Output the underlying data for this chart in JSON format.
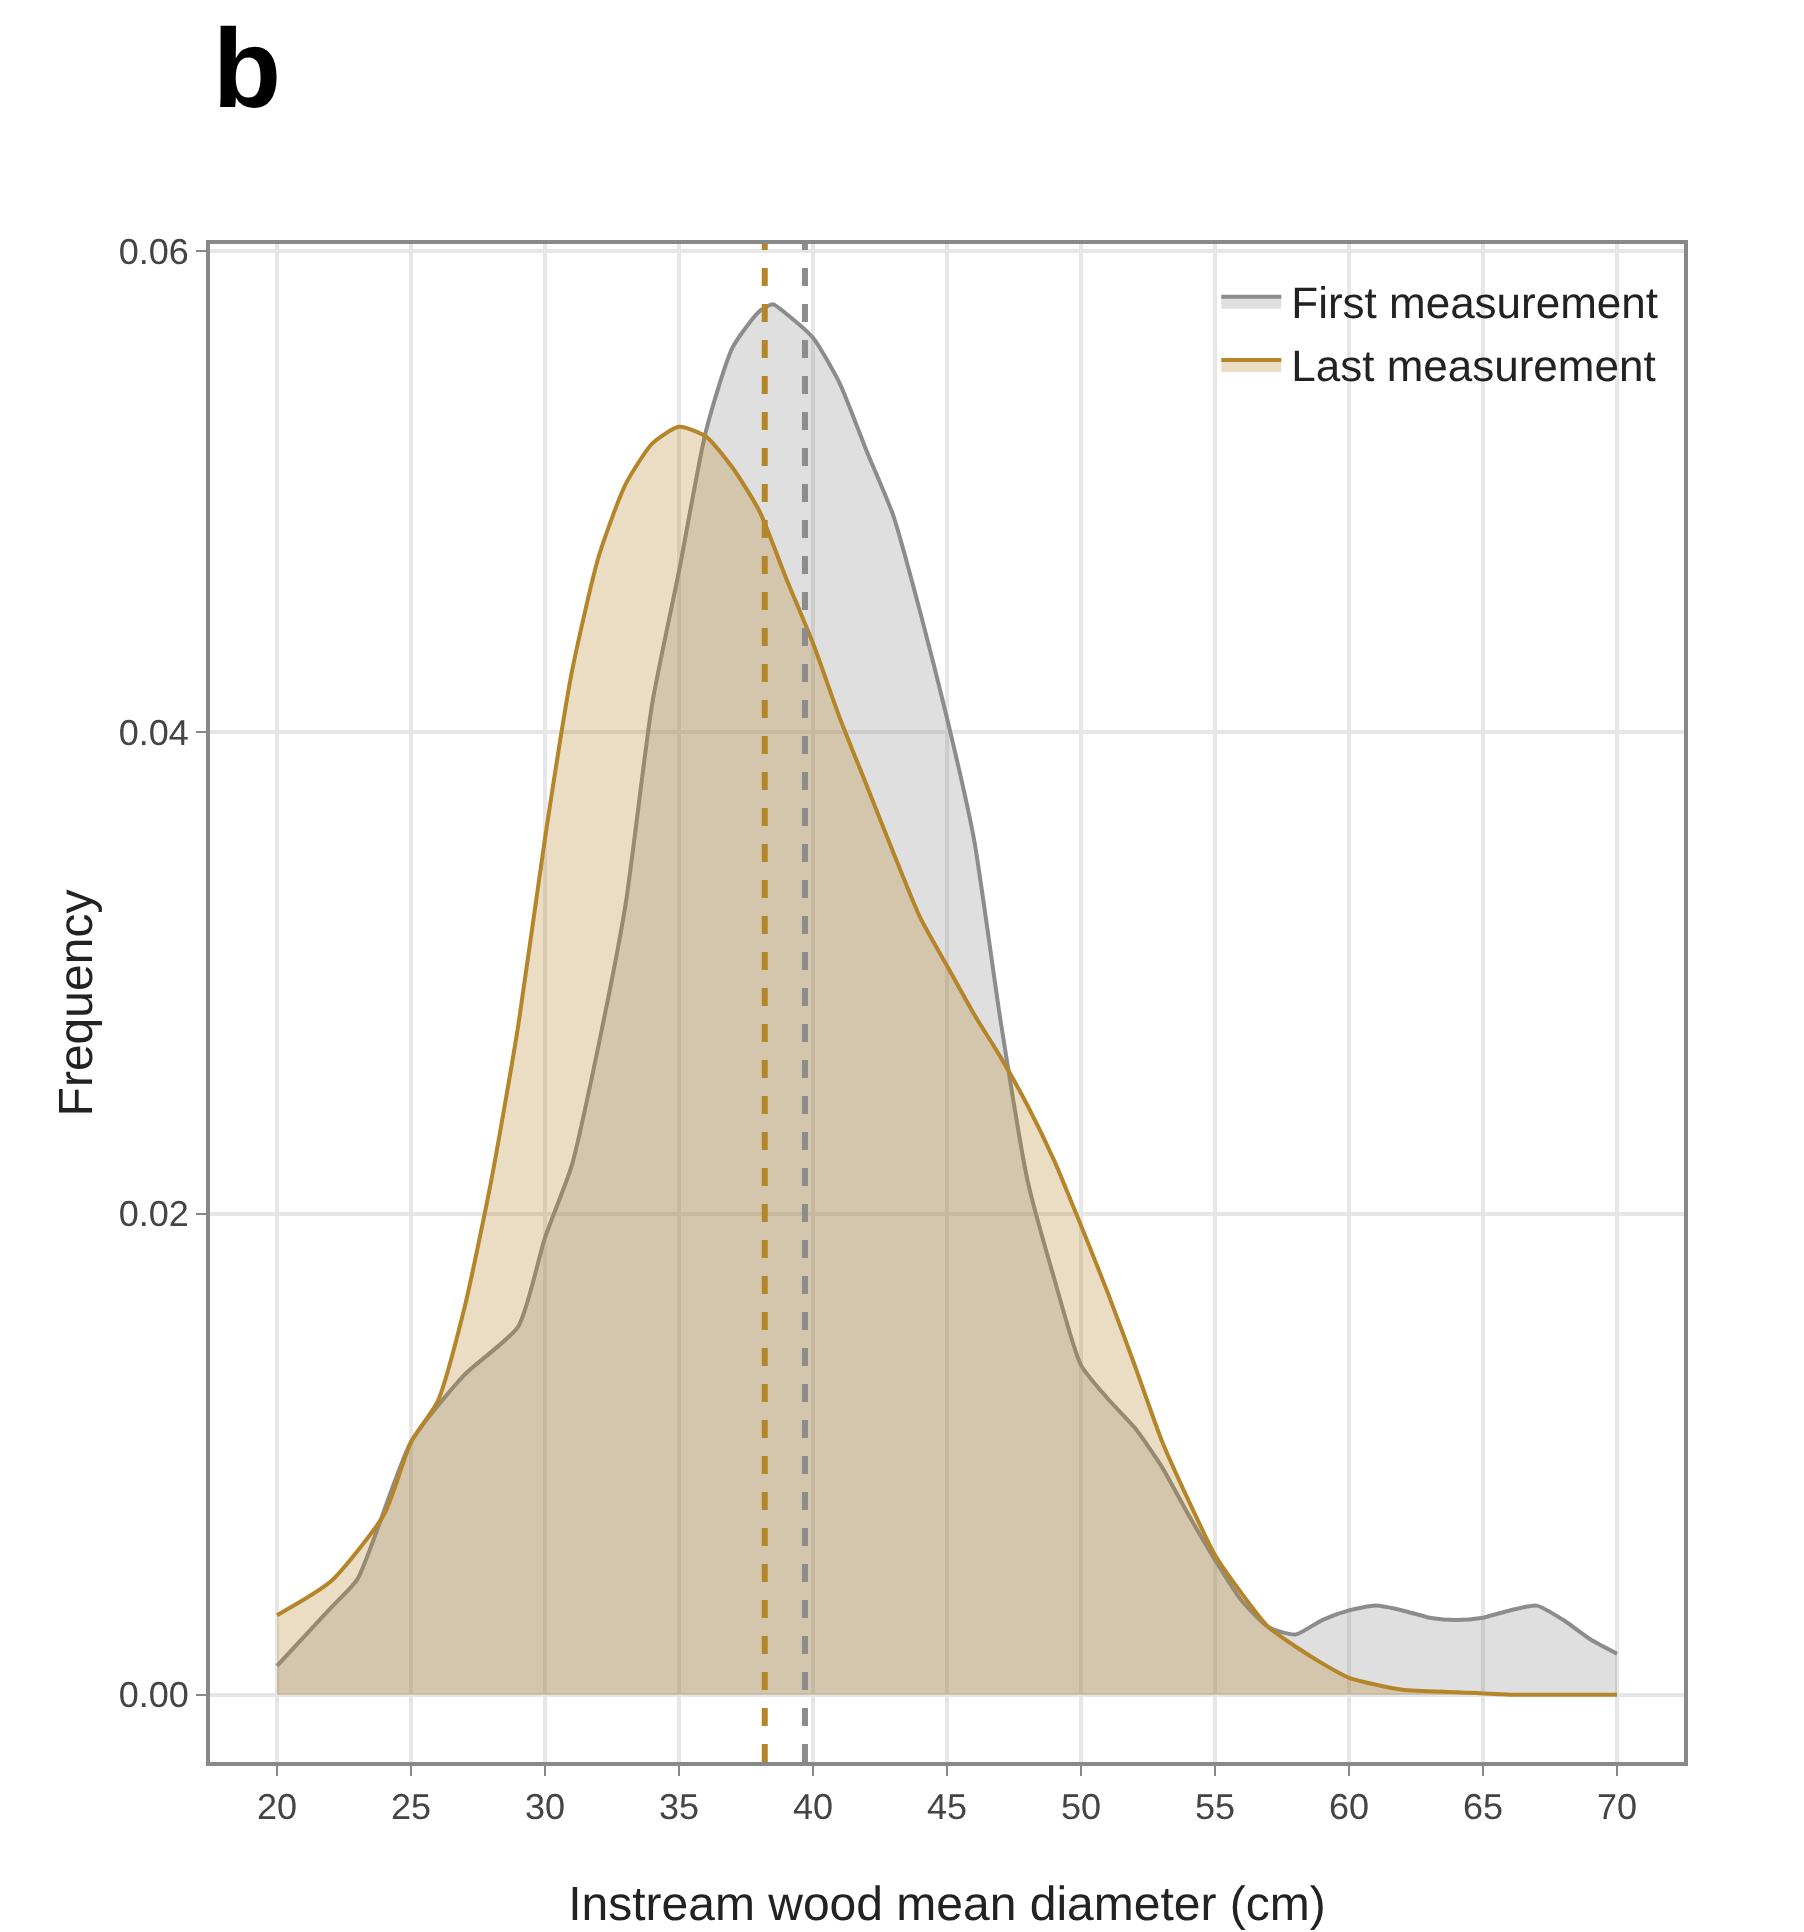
{
  "chart_data": {
    "type": "area",
    "title": "b",
    "xlabel": "Instream wood mean diameter (cm)",
    "ylabel": "Frequency",
    "series": [
      {
        "name": "First measurement",
        "color": "#8c8c8c",
        "x": [
          20,
          22,
          23,
          25,
          27,
          29,
          30,
          31,
          32,
          33,
          34,
          35,
          36,
          37,
          38,
          38.5,
          39,
          40,
          41,
          42,
          43,
          44,
          45,
          46,
          47,
          48,
          49,
          50,
          51,
          52,
          53,
          54,
          55,
          56,
          57,
          58,
          59,
          60,
          61,
          62,
          63,
          64,
          65,
          66,
          67,
          68,
          69,
          70
        ],
        "values": [
          0.0012,
          0.0036,
          0.0048,
          0.0105,
          0.0133,
          0.0153,
          0.019,
          0.022,
          0.027,
          0.0328,
          0.0412,
          0.0467,
          0.0525,
          0.056,
          0.0575,
          0.0578,
          0.0574,
          0.0564,
          0.0545,
          0.0517,
          0.049,
          0.045,
          0.0406,
          0.0356,
          0.028,
          0.0214,
          0.0173,
          0.0137,
          0.0123,
          0.0111,
          0.0095,
          0.0075,
          0.0056,
          0.0039,
          0.0028,
          0.0025,
          0.0031,
          0.0035,
          0.0037,
          0.0035,
          0.0032,
          0.0031,
          0.0032,
          0.0035,
          0.0037,
          0.0031,
          0.0023,
          0.0017
        ]
      },
      {
        "name": "Last measurement",
        "color": "#b5852a",
        "x": [
          20,
          22,
          24,
          25,
          26,
          27,
          28,
          29,
          30,
          31,
          32,
          33,
          34,
          35,
          36,
          37,
          38,
          39,
          40,
          41,
          42,
          43,
          44,
          45,
          46,
          47,
          48,
          49,
          50,
          51,
          52,
          53,
          54,
          55,
          56,
          57,
          58,
          59,
          60,
          62,
          64,
          66,
          70
        ],
        "values": [
          0.0033,
          0.0047,
          0.0075,
          0.0105,
          0.0122,
          0.0161,
          0.0214,
          0.0278,
          0.0356,
          0.0425,
          0.0473,
          0.0503,
          0.052,
          0.0527,
          0.0523,
          0.051,
          0.0492,
          0.0464,
          0.0437,
          0.0406,
          0.0378,
          0.035,
          0.0323,
          0.0303,
          0.0283,
          0.0265,
          0.0245,
          0.0222,
          0.0195,
          0.0167,
          0.0137,
          0.0106,
          0.0081,
          0.0058,
          0.0042,
          0.0028,
          0.002,
          0.0013,
          0.0007,
          0.0002,
          0.0001,
          0,
          0
        ]
      }
    ],
    "ref_lines": [
      {
        "axis": "x",
        "value": 38.2,
        "color": "#b5852a",
        "line_style": "dashed"
      },
      {
        "axis": "x",
        "value": 39.7,
        "color": "#8c8c8c",
        "line_style": "dashed"
      }
    ],
    "xlim": [
      17.5,
      72.5
    ],
    "xticks": [
      20,
      25,
      30,
      35,
      40,
      45,
      50,
      55,
      60,
      65,
      70
    ],
    "ylim": [
      -0.0028,
      0.0603
    ],
    "yticks": [
      {
        "value": 0,
        "label": "0.00"
      },
      {
        "value": 0.02,
        "label": "0.02"
      },
      {
        "value": 0.04,
        "label": "0.04"
      },
      {
        "value": 0.06,
        "label": "0.06"
      }
    ],
    "grid": true,
    "legend": "top right"
  }
}
